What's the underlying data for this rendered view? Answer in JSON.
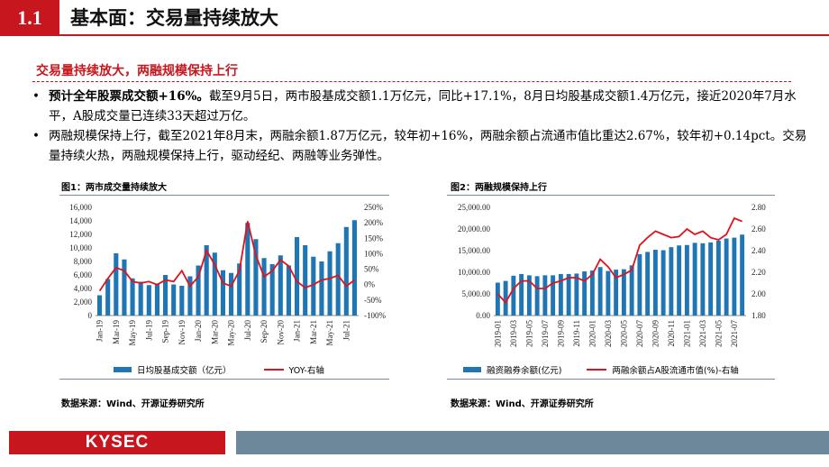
{
  "header": {
    "section_no": "1.1",
    "title": "基本面：交易量持续放大"
  },
  "subtitle": "交易量持续放大，两融规模保持上行",
  "bullets": [
    {
      "bold": "预计全年股票成交额+16%。",
      "text": "截至9月5日，两市股基成交额1.1万亿元，同比+17.1%，8月日均股基成交额1.4万亿元，接近2020年7月水平，A股成交量已连续33天超过万亿。"
    },
    {
      "bold": "",
      "text": "两融规模保持上行，截至2021年8月末，两融余额1.87万亿元，较年初+16%，两融余额占流通市值比重达2.67%，较年初+0.14pct。交易量持续火热，两融规模保持上行，驱动经纪、两融等业务弹性。"
    }
  ],
  "fig1": {
    "title": "图1：两市成交量持续放大",
    "legend_bar": "日均股基成交额（亿元）",
    "legend_line": "YOY-右轴",
    "source": "数据来源：Wind、开源证券研究所"
  },
  "fig2": {
    "title": "图2：两融规模保持上行",
    "legend_bar": "融资融券余额(亿元)",
    "legend_line": "两融余额占A股流通市值(%)-右轴",
    "source": "数据来源：Wind、开源证券研究所"
  },
  "footer": {
    "logo": "KYSEC"
  },
  "chart_data": [
    {
      "type": "bar",
      "title": "图1：两市成交量持续放大",
      "x_tick_labels": [
        "Jan-19",
        "Mar-19",
        "May-19",
        "Jul-19",
        "Sep-19",
        "Nov-19",
        "Jan-20",
        "Mar-20",
        "May-20",
        "Jul-20",
        "Sep-20",
        "Nov-20",
        "Jan-21",
        "Mar-21",
        "May-21",
        "Jul-21"
      ],
      "categories": [
        "Jan-19",
        "Feb-19",
        "Mar-19",
        "Apr-19",
        "May-19",
        "Jun-19",
        "Jul-19",
        "Aug-19",
        "Sep-19",
        "Oct-19",
        "Nov-19",
        "Dec-19",
        "Jan-20",
        "Feb-20",
        "Mar-20",
        "Apr-20",
        "May-20",
        "Jun-20",
        "Jul-20",
        "Aug-20",
        "Sep-20",
        "Oct-20",
        "Nov-20",
        "Dec-20",
        "Jan-21",
        "Feb-21",
        "Mar-21",
        "Apr-21",
        "May-21",
        "Jun-21",
        "Jul-21",
        "Aug-21"
      ],
      "series": [
        {
          "name": "日均股基成交额（亿元）",
          "axis": "left",
          "type": "bar",
          "color": "#1f76b4",
          "values": [
            3000,
            5400,
            9200,
            8300,
            5500,
            5000,
            4500,
            4700,
            6000,
            4600,
            4400,
            5800,
            7400,
            10400,
            9300,
            6700,
            6300,
            7700,
            13700,
            11300,
            8500,
            7600,
            8900,
            7400,
            11600,
            10400,
            8700,
            8000,
            9500,
            10700,
            13100,
            14100
          ]
        },
        {
          "name": "YOY-右轴",
          "axis": "right",
          "type": "line",
          "color": "#e0121b",
          "values": [
            -20,
            20,
            55,
            45,
            10,
            5,
            10,
            0,
            15,
            10,
            45,
            -5,
            25,
            110,
            65,
            5,
            -5,
            45,
            205,
            95,
            25,
            45,
            80,
            60,
            10,
            -10,
            0,
            15,
            20,
            30,
            -5,
            15
          ]
        }
      ],
      "y_left": {
        "min": 0,
        "max": 16000,
        "ticks": [
          "0",
          "2,000",
          "4,000",
          "6,000",
          "8,000",
          "10,000",
          "12,000",
          "14,000",
          "16,000"
        ]
      },
      "y_right": {
        "min": -100,
        "max": 250,
        "ticks": [
          "-100%",
          "-50%",
          "0%",
          "50%",
          "100%",
          "150%",
          "200%",
          "250%"
        ]
      },
      "legend": "bottom",
      "grid": false
    },
    {
      "type": "bar",
      "title": "图2：两融规模保持上行",
      "x_tick_labels": [
        "2019-01",
        "2019-03",
        "2019-05",
        "2019-07",
        "2019-09",
        "2019-11",
        "2020-01",
        "2020-03",
        "2020-05",
        "2020-07",
        "2020-09",
        "2020-11",
        "2021-01",
        "2021-03",
        "2021-05",
        "2021-07"
      ],
      "categories": [
        "2019-01",
        "2019-02",
        "2019-03",
        "2019-04",
        "2019-05",
        "2019-06",
        "2019-07",
        "2019-08",
        "2019-09",
        "2019-10",
        "2019-11",
        "2019-12",
        "2020-01",
        "2020-02",
        "2020-03",
        "2020-04",
        "2020-05",
        "2020-06",
        "2020-07",
        "2020-08",
        "2020-09",
        "2020-10",
        "2020-11",
        "2020-12",
        "2021-01",
        "2021-02",
        "2021-03",
        "2021-04",
        "2021-05",
        "2021-06",
        "2021-07",
        "2021-08"
      ],
      "series": [
        {
          "name": "融资融券余额(亿元)",
          "axis": "left",
          "type": "bar",
          "color": "#1f76b4",
          "values": [
            7600,
            8000,
            9200,
            9600,
            9300,
            9100,
            9300,
            9300,
            9600,
            9600,
            9700,
            10200,
            10400,
            11200,
            10300,
            10600,
            10700,
            11600,
            14200,
            14700,
            15200,
            15100,
            15800,
            16200,
            16300,
            16800,
            16700,
            16900,
            17300,
            17800,
            18000,
            18700
          ]
        },
        {
          "name": "两融余额占A股流通市值(%)-右轴",
          "axis": "right",
          "type": "line",
          "color": "#e0121b",
          "values": [
            2.0,
            1.92,
            2.05,
            2.12,
            2.12,
            2.05,
            2.05,
            2.1,
            2.12,
            2.15,
            2.15,
            2.12,
            2.18,
            2.32,
            2.25,
            2.15,
            2.18,
            2.22,
            2.45,
            2.52,
            2.58,
            2.55,
            2.52,
            2.53,
            2.6,
            2.55,
            2.58,
            2.52,
            2.5,
            2.55,
            2.7,
            2.67
          ]
        }
      ],
      "y_left": {
        "min": 0,
        "max": 25000,
        "ticks": [
          "0.00",
          "5,000.00",
          "10,000.00",
          "15,000.00",
          "20,000.00",
          "25,000.00"
        ]
      },
      "y_right": {
        "min": 1.8,
        "max": 2.8,
        "ticks": [
          "1.80",
          "2.00",
          "2.20",
          "2.40",
          "2.60",
          "2.80"
        ]
      },
      "legend": "bottom",
      "grid": false
    }
  ]
}
